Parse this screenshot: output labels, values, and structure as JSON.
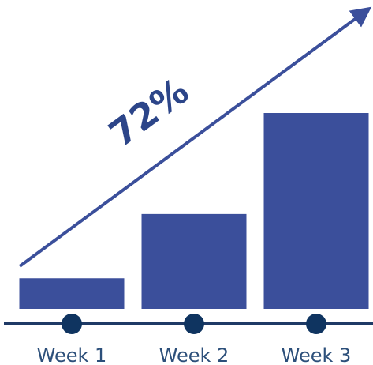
{
  "chart_data": {
    "type": "bar",
    "categories": [
      "Week 1",
      "Week 2",
      "Week 3"
    ],
    "values": [
      10,
      31,
      64
    ],
    "ylim": [
      0,
      64
    ],
    "grid": false,
    "annotation": "72%",
    "colors": {
      "bar": "#3b4f9b",
      "axis": "#1f3a66",
      "marker": "#0f3460",
      "arrow": "#3b4f9b",
      "annotation": "#2c4589",
      "tick_label": "#2c4f7a"
    }
  }
}
